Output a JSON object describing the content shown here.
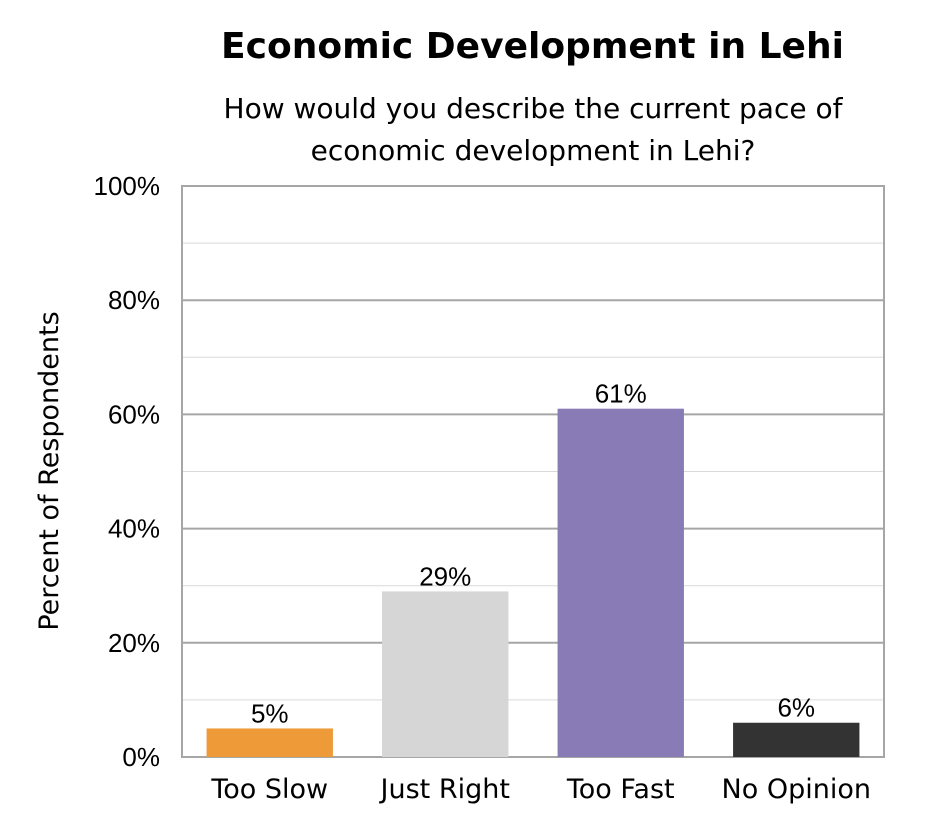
{
  "chart_data": {
    "type": "bar",
    "title": "Economic Development in Lehi",
    "subtitle": "How would you describe the current pace of economic development in Lehi?",
    "ylabel": "Percent of Respondents",
    "xlabel": "",
    "categories": [
      "Too Slow",
      "Just Right",
      "Too Fast",
      "No Opinion"
    ],
    "values": [
      5,
      29,
      61,
      6
    ],
    "data_labels": [
      "5%",
      "29%",
      "61%",
      "6%"
    ],
    "colors": [
      "#EE9A38",
      "#D6D6D6",
      "#887BB6",
      "#333333"
    ],
    "ylim": [
      0,
      100
    ],
    "yticks": [
      0,
      20,
      40,
      60,
      80,
      100
    ],
    "ytick_labels": [
      "0%",
      "20%",
      "40%",
      "60%",
      "80%",
      "100%"
    ],
    "grid": "major and minor horizontal",
    "legend": "none"
  }
}
